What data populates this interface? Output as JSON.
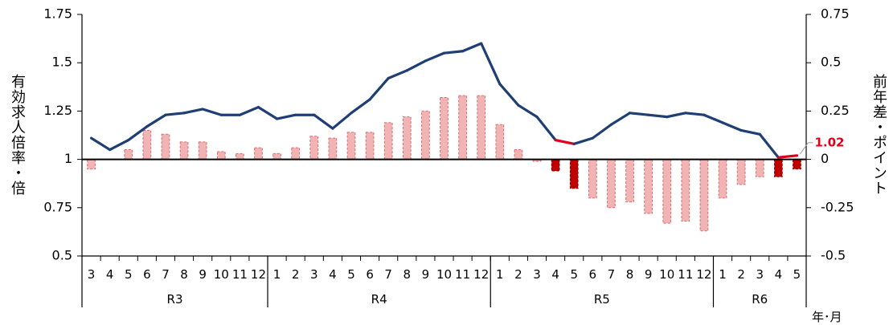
{
  "chart_data": {
    "type": "bar+line",
    "left_axis": {
      "title": "有効求人倍率・倍",
      "ticks": [
        "1.75",
        "1.5",
        "1.25",
        "1",
        "0.75",
        "0.5"
      ],
      "ylim": [
        0.5,
        1.75
      ]
    },
    "right_axis": {
      "title": "前年差・ポイント",
      "ticks": [
        "0.75",
        "0.5",
        "0.25",
        "0",
        "-0.25",
        "-0.5"
      ],
      "ylim": [
        -0.5,
        0.75
      ]
    },
    "x_unit_label": "年･月",
    "categories": [
      "3",
      "4",
      "5",
      "6",
      "7",
      "8",
      "9",
      "10",
      "11",
      "12",
      "1",
      "2",
      "3",
      "4",
      "5",
      "6",
      "7",
      "8",
      "9",
      "10",
      "11",
      "12",
      "1",
      "2",
      "3",
      "4",
      "5",
      "6",
      "7",
      "8",
      "9",
      "10",
      "11",
      "12",
      "1",
      "2",
      "3",
      "4",
      "5"
    ],
    "groups": [
      {
        "label": "R3",
        "start": 0,
        "end": 10
      },
      {
        "label": "R4",
        "start": 10,
        "end": 22
      },
      {
        "label": "R5",
        "start": 22,
        "end": 34
      },
      {
        "label": "R6",
        "start": 34,
        "end": 39
      }
    ],
    "series": [
      {
        "type": "line",
        "axis": "left",
        "values": [
          1.11,
          1.05,
          1.1,
          1.17,
          1.23,
          1.24,
          1.26,
          1.23,
          1.23,
          1.27,
          1.21,
          1.23,
          1.23,
          1.16,
          1.24,
          1.31,
          1.42,
          1.46,
          1.51,
          1.55,
          1.56,
          1.6,
          1.39,
          1.28,
          1.22,
          1.1,
          1.08,
          1.11,
          1.18,
          1.24,
          1.23,
          1.22,
          1.24,
          1.23,
          1.19,
          1.15,
          1.13,
          1.01,
          1.02
        ]
      },
      {
        "type": "bar",
        "axis": "right",
        "values": [
          -0.05,
          0.0,
          0.05,
          0.15,
          0.13,
          0.09,
          0.09,
          0.04,
          0.03,
          0.06,
          0.03,
          0.06,
          0.12,
          0.11,
          0.14,
          0.14,
          0.19,
          0.22,
          0.25,
          0.32,
          0.33,
          0.33,
          0.18,
          0.05,
          -0.01,
          -0.06,
          -0.15,
          -0.2,
          -0.25,
          -0.22,
          -0.28,
          -0.33,
          -0.32,
          -0.37,
          -0.2,
          -0.13,
          -0.09,
          -0.09,
          -0.05
        ]
      }
    ],
    "highlight_indices": [
      25,
      26,
      37,
      38
    ],
    "annotation": {
      "text": "1.02",
      "index": 38
    },
    "colors": {
      "line": "#1f3f74",
      "line_highlight": "#e0001b",
      "bar_fill": "#f0b4b4",
      "bar_stroke": "#e06a6a",
      "bar_highlight": "#c00000"
    }
  }
}
